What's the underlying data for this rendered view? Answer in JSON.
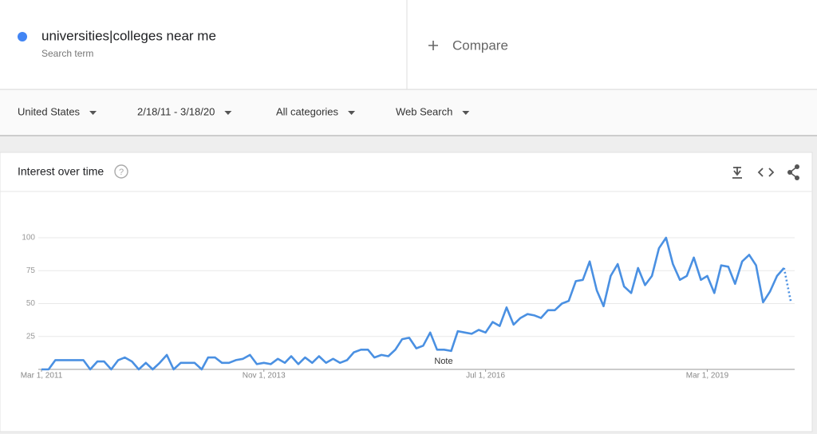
{
  "search": {
    "term": "universities|colleges near me",
    "subtitle": "Search term",
    "compare": "Compare"
  },
  "filters": [
    "United States",
    "2/18/11 - 3/18/20",
    "All categories",
    "Web Search"
  ],
  "panel": {
    "title": "Interest over time"
  },
  "chart_data": {
    "type": "line",
    "note": "Note",
    "x": [
      "2011-03-01",
      "2011-04-01",
      "2011-05-01",
      "2011-06-01",
      "2011-07-01",
      "2011-08-01",
      "2011-09-01",
      "2011-10-01",
      "2011-11-01",
      "2011-12-01",
      "2012-01-01",
      "2012-02-01",
      "2012-03-01",
      "2012-04-01",
      "2012-05-01",
      "2012-06-01",
      "2012-07-01",
      "2012-08-01",
      "2012-09-01",
      "2012-10-01",
      "2012-11-01",
      "2012-12-01",
      "2013-01-01",
      "2013-02-01",
      "2013-03-01",
      "2013-04-01",
      "2013-05-01",
      "2013-06-01",
      "2013-07-01",
      "2013-08-01",
      "2013-09-01",
      "2013-10-01",
      "2013-11-01",
      "2013-12-01",
      "2014-01-01",
      "2014-02-01",
      "2014-03-01",
      "2014-04-01",
      "2014-05-01",
      "2014-06-01",
      "2014-07-01",
      "2014-08-01",
      "2014-09-01",
      "2014-10-01",
      "2014-11-01",
      "2014-12-01",
      "2015-01-01",
      "2015-02-01",
      "2015-03-01",
      "2015-04-01",
      "2015-05-01",
      "2015-06-01",
      "2015-07-01",
      "2015-08-01",
      "2015-09-01",
      "2015-10-01",
      "2015-11-01",
      "2015-12-01",
      "2016-01-01",
      "2016-02-01",
      "2016-03-01",
      "2016-04-01",
      "2016-05-01",
      "2016-06-01",
      "2016-07-01",
      "2016-08-01",
      "2016-09-01",
      "2016-10-01",
      "2016-11-01",
      "2016-12-01",
      "2017-01-01",
      "2017-02-01",
      "2017-03-01",
      "2017-04-01",
      "2017-05-01",
      "2017-06-01",
      "2017-07-01",
      "2017-08-01",
      "2017-09-01",
      "2017-10-01",
      "2017-11-01",
      "2017-12-01",
      "2018-01-01",
      "2018-02-01",
      "2018-03-01",
      "2018-04-01",
      "2018-05-01",
      "2018-06-01",
      "2018-07-01",
      "2018-08-01",
      "2018-09-01",
      "2018-10-01",
      "2018-11-01",
      "2018-12-01",
      "2019-01-01",
      "2019-02-01",
      "2019-03-01",
      "2019-04-01",
      "2019-05-01",
      "2019-06-01",
      "2019-07-01",
      "2019-08-01",
      "2019-09-01",
      "2019-10-01",
      "2019-11-01",
      "2019-12-01",
      "2020-01-01",
      "2020-02-01",
      "2020-03-01"
    ],
    "series": [
      {
        "name": "universities|colleges near me",
        "color": "#4a90e2",
        "values": [
          0,
          0,
          7,
          7,
          7,
          7,
          7,
          0,
          6,
          6,
          0,
          7,
          9,
          6,
          0,
          5,
          0,
          5,
          11,
          0,
          5,
          5,
          5,
          0,
          9,
          9,
          5,
          5,
          7,
          8,
          11,
          4,
          5,
          4,
          8,
          5,
          10,
          4,
          9,
          5,
          10,
          5,
          8,
          5,
          7,
          13,
          15,
          15,
          9,
          11,
          10,
          15,
          23,
          24,
          16,
          18,
          28,
          15,
          15,
          14,
          29,
          28,
          27,
          30,
          28,
          36,
          33,
          47,
          34,
          39,
          42,
          41,
          39,
          45,
          45,
          50,
          52,
          67,
          68,
          82,
          60,
          48,
          71,
          80,
          63,
          58,
          77,
          64,
          71,
          92,
          100,
          80,
          68,
          71,
          85,
          68,
          71,
          58,
          79,
          78,
          65,
          82,
          87,
          79,
          51,
          59,
          71,
          77,
          52
        ]
      }
    ],
    "xlim": [
      "2011-03-01",
      "2020-03-01"
    ],
    "xticks": [
      {
        "value": "2011-03-01",
        "label": "Mar 1, 2011"
      },
      {
        "value": "2013-11-01",
        "label": "Nov 1, 2013"
      },
      {
        "value": "2016-07-01",
        "label": "Jul 1, 2016"
      },
      {
        "value": "2019-03-01",
        "label": "Mar 1, 2019"
      }
    ],
    "ylim": [
      0,
      100
    ],
    "yticks": [
      25,
      50,
      75,
      100
    ],
    "grid": true
  }
}
